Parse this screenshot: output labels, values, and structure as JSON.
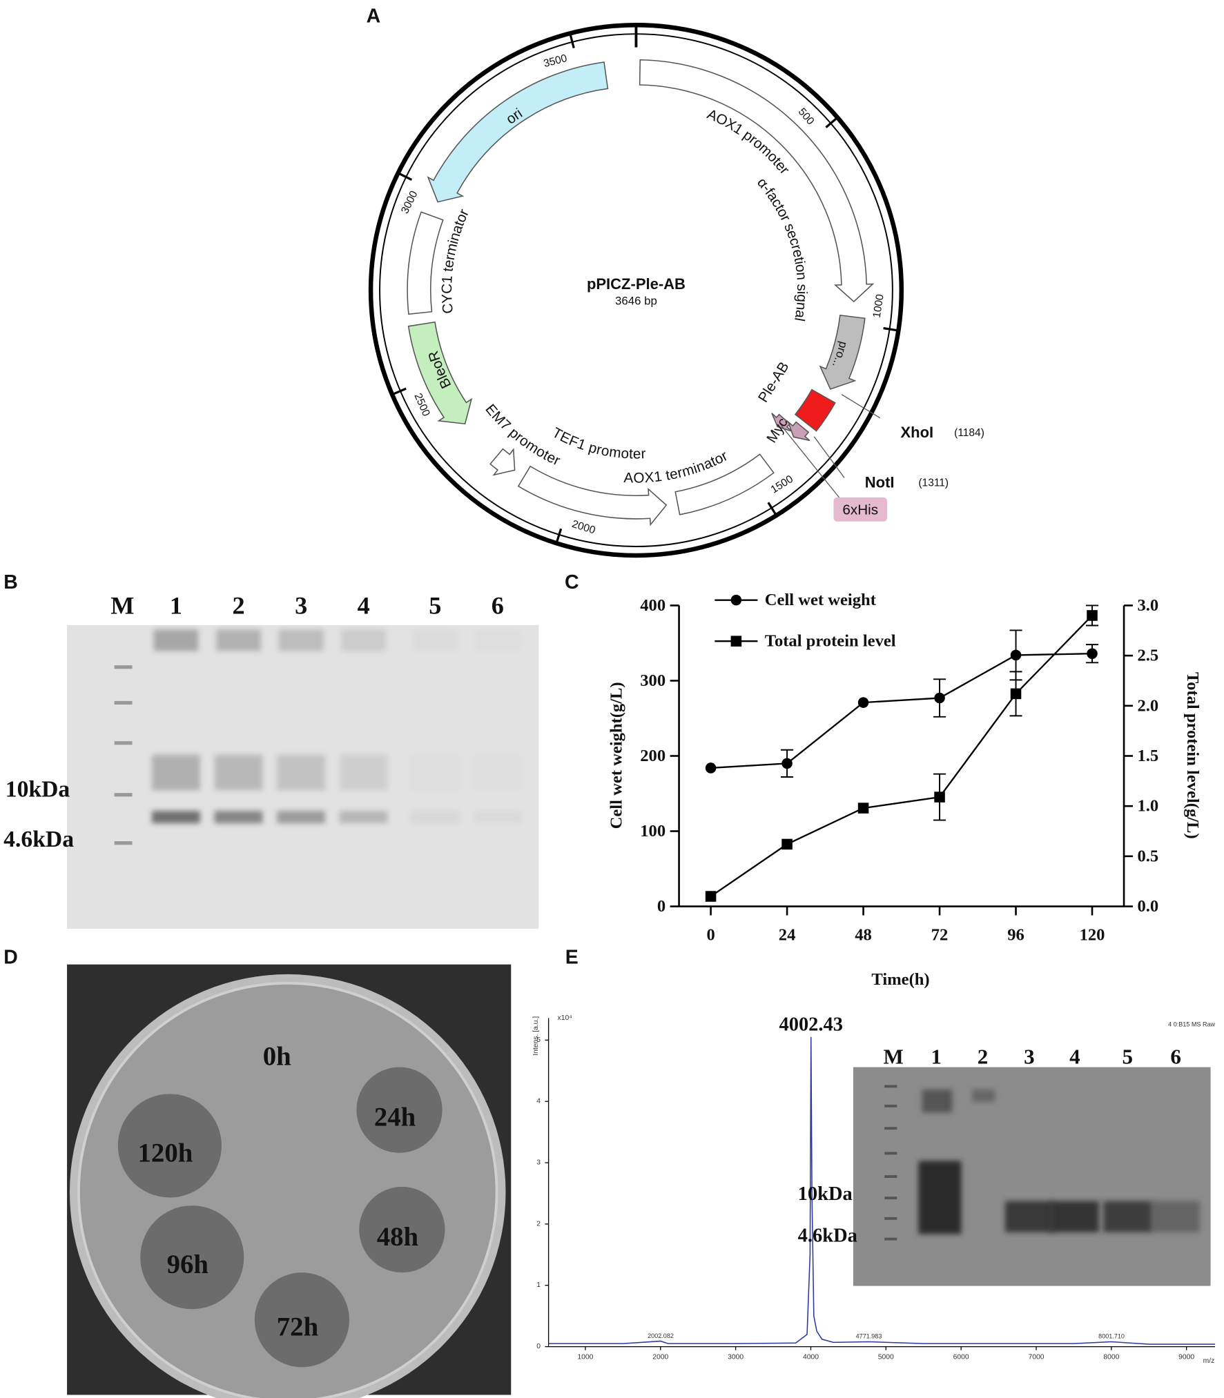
{
  "panel_labels": [
    "A",
    "B",
    "C",
    "D",
    "E"
  ],
  "plasmid": {
    "name": "pPICZ-Ple-AB",
    "size": {
      "value": 3646,
      "label": "3646 bp"
    },
    "features": [
      "AOX1 promoter",
      "α-factor secretion signal",
      "pro...",
      "Ple-AB",
      "Myc",
      "AOX1 terminator",
      "TEF1 promoter",
      "EM7 promoter",
      "BleoR",
      "CYC1 terminator",
      "ori",
      "6xHis"
    ],
    "scale": [
      500,
      1000,
      1500,
      2000,
      2500,
      3000,
      3500
    ],
    "sites": [
      {
        "name": "XhoI",
        "position": {
          "value": 1184,
          "label": "(1184)"
        }
      },
      {
        "name": "NotI",
        "position": {
          "value": 1311,
          "label": "(1311)"
        }
      }
    ]
  },
  "gel_b": {
    "lanes": [
      "M",
      "1",
      "2",
      "3",
      "4",
      "5",
      "6"
    ],
    "markers": [
      "10kDa",
      "4.6kDa"
    ]
  },
  "chart_data": [
    {
      "type": "line",
      "xlabel": "Time(h)",
      "ylabel": "Cell wet weight(g/L)",
      "y2label": "Total protein level(g/L)",
      "x": [
        0,
        24,
        48,
        72,
        96,
        120
      ],
      "xlim": [
        -10,
        130
      ],
      "xticks": [
        0,
        24,
        48,
        72,
        96,
        120
      ],
      "ylim": [
        0,
        400
      ],
      "yticks": [
        0,
        100,
        200,
        300,
        400
      ],
      "y2lim": [
        0,
        3
      ],
      "y2ticks": [
        {
          "value": 0,
          "label": "0.0"
        },
        0.5,
        {
          "value": 1,
          "label": "1.0"
        },
        1.5,
        {
          "value": 2,
          "label": "2.0"
        },
        2.5,
        {
          "value": 3,
          "label": "3.0"
        }
      ],
      "series": [
        {
          "name": "Cell wet weight",
          "color": "#000000",
          "marker": "circle",
          "values": [
            184,
            190,
            271,
            277,
            334,
            336
          ],
          "errors": [
            null,
            18,
            null,
            25,
            33,
            12
          ]
        },
        {
          "name": "Total protein level",
          "color": "#000000",
          "marker": "square",
          "axis": "y2",
          "values": [
            0.1,
            0.62,
            0.98,
            1.09,
            2.12,
            2.9
          ],
          "errors": [
            null,
            null,
            null,
            0.23,
            0.22,
            0.1
          ]
        }
      ],
      "legend": "upper left",
      "grid": false
    },
    {
      "type": "line",
      "xlabel": "m/z",
      "ylabel": "Intens. [a.u.]",
      "yunit": "x10⁴",
      "note": "4 0:B15 MS Raw",
      "x": [
        510,
        1000,
        1500,
        2002.082,
        2100,
        3000,
        3800,
        3950,
        3990,
        4002.43,
        4015,
        4040,
        4080,
        4150,
        4300,
        4771.983,
        5500,
        6500,
        7500,
        8001.71,
        8500,
        9380
      ],
      "xlim": [
        510,
        9380
      ],
      "xticks": [
        1000,
        2000,
        3000,
        4000,
        5000,
        6000,
        7000,
        8000,
        9000
      ],
      "ylim": [
        0,
        5.36
      ],
      "yticks": [
        0,
        1,
        2,
        3,
        4,
        5
      ],
      "series": [
        {
          "color": "#2b3a9e",
          "values": [
            0.05,
            0.05,
            0.05,
            0.09,
            0.05,
            0.05,
            0.06,
            0.2,
            1.5,
            5.05,
            2.5,
            0.5,
            0.25,
            0.12,
            0.07,
            0.08,
            0.05,
            0.05,
            0.05,
            0.08,
            0.04,
            0.04
          ]
        }
      ],
      "annotations": [
        {
          "x": 4002.43,
          "y": 5.05,
          "label": "4002.43"
        },
        {
          "x": 2002.082,
          "y": 0.09,
          "label": "2002.082"
        },
        {
          "x": 4771.983,
          "y": 0.08,
          "label": "4771.983"
        },
        {
          "x": 8001.71,
          "y": 0.08,
          "label": "8001.710"
        }
      ],
      "grid": false
    }
  ],
  "plate": {
    "labels": [
      "0h",
      "24h",
      "48h",
      "72h",
      "96h",
      "120h"
    ]
  },
  "gel_e": {
    "lanes": [
      "M",
      "1",
      "2",
      "3",
      "4",
      "5",
      "6"
    ],
    "markers": [
      "10kDa",
      "4.6kDa"
    ]
  }
}
